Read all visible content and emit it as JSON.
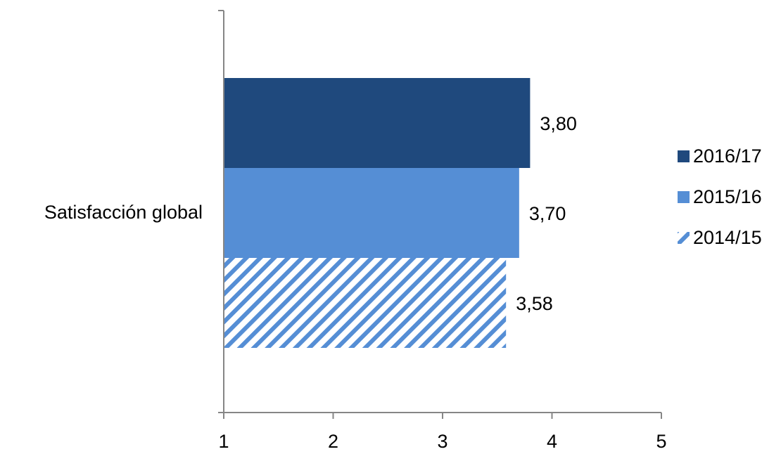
{
  "chart_data": {
    "type": "bar",
    "orientation": "horizontal",
    "categories": [
      "Satisfacción global"
    ],
    "series": [
      {
        "name": "2016/17",
        "values": [
          3.8
        ],
        "labels": [
          "3,80"
        ],
        "color": "#1F497D",
        "pattern": "solid"
      },
      {
        "name": "2015/16",
        "values": [
          3.7
        ],
        "labels": [
          "3,70"
        ],
        "color": "#558ED5",
        "pattern": "solid"
      },
      {
        "name": "2014/15",
        "values": [
          3.58
        ],
        "labels": [
          "3,58"
        ],
        "color": "#558ED5",
        "pattern": "diagonal-stripes"
      }
    ],
    "xlim": [
      1,
      5
    ],
    "xticks": [
      "1",
      "2",
      "3",
      "4",
      "5"
    ],
    "grid": false,
    "legend_position": "right",
    "title": "",
    "xlabel": "",
    "ylabel": ""
  }
}
